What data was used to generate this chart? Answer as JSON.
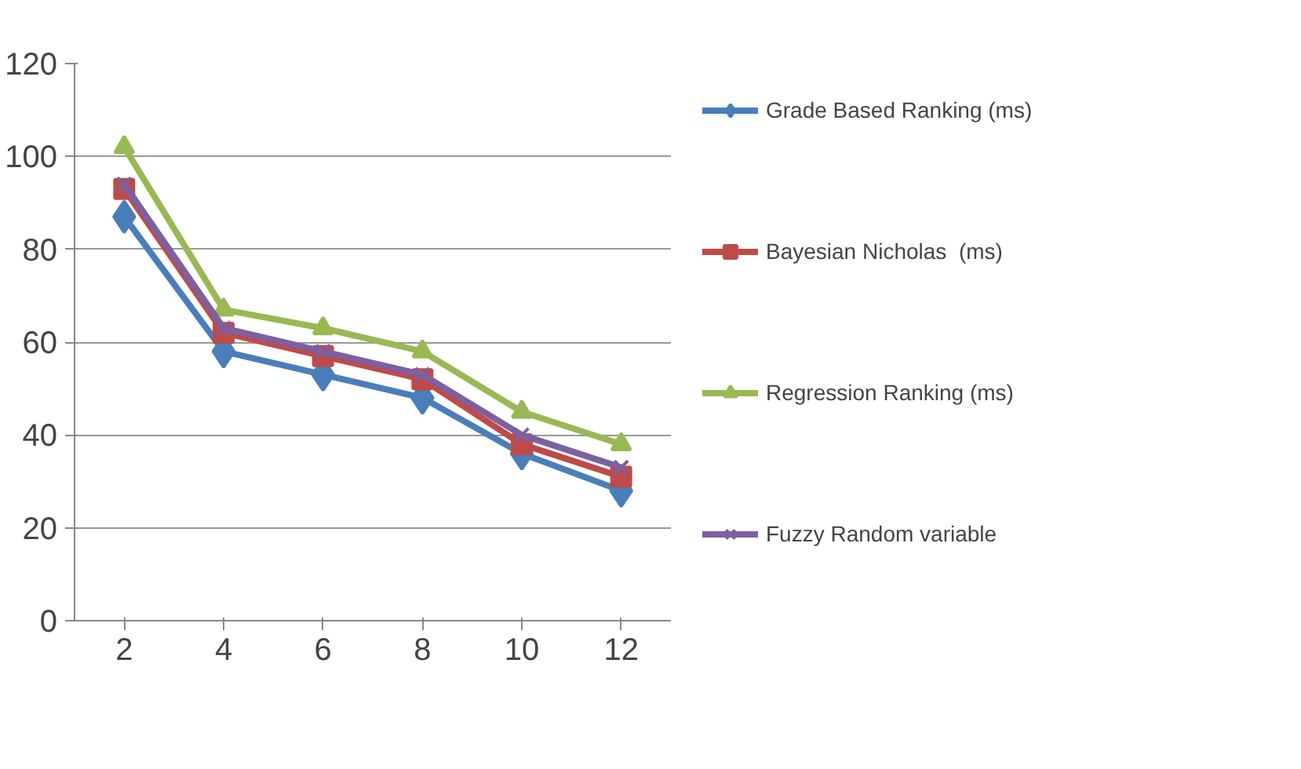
{
  "chart_data": {
    "type": "line",
    "categories": [
      "2",
      "4",
      "6",
      "8",
      "10",
      "12"
    ],
    "series": [
      {
        "name": "Grade Based Ranking (ms)",
        "color": "#4a7ebb",
        "marker": "diamond",
        "values": [
          87,
          58,
          53,
          48,
          36,
          28
        ]
      },
      {
        "name": "Bayesian Nicholas  (ms)",
        "color": "#be4b48",
        "marker": "square",
        "values": [
          93,
          62,
          57,
          52,
          38,
          31
        ]
      },
      {
        "name": "Regression Ranking (ms)",
        "color": "#98b954",
        "marker": "triangle",
        "values": [
          102,
          67,
          63,
          58,
          45,
          38
        ]
      },
      {
        "name": "Fuzzy Random variable",
        "color": "#7d60a0",
        "marker": "cross",
        "values": [
          94,
          63,
          58,
          53,
          40,
          33
        ]
      }
    ],
    "ylim": [
      0,
      120
    ],
    "yticks": [
      0,
      20,
      40,
      60,
      80,
      100,
      120
    ],
    "grid": "y",
    "legend": "right",
    "line_style": "solid"
  }
}
